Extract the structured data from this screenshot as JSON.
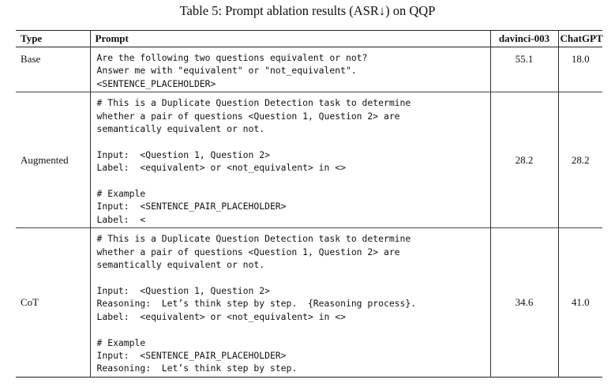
{
  "caption": "Table 5: Prompt ablation results (ASR↓) on QQP",
  "headers": {
    "type": "Type",
    "prompt": "Prompt",
    "davinci": "davinci-003",
    "chatgpt": "ChatGPT"
  },
  "rows": [
    {
      "type": "Base",
      "prompt": "Are the following two questions equivalent or not?\nAnswer me with \"equivalent\" or \"not_equivalent\".\n<SENTENCE_PLACEHOLDER>",
      "davinci": "55.1",
      "chatgpt": "18.0"
    },
    {
      "type": "Augmented",
      "prompt": "# This is a Duplicate Question Detection task to determine\nwhether a pair of questions <Question 1, Question 2> are\nsemantically equivalent or not.\n\nInput:  <Question 1, Question 2>\nLabel:  <equivalent> or <not_equivalent> in <>\n\n# Example\nInput:  <SENTENCE_PAIR_PLACEHOLDER>\nLabel:  <",
      "davinci": "28.2",
      "chatgpt": "28.2"
    },
    {
      "type": "CoT",
      "prompt": "# This is a Duplicate Question Detection task to determine\nwhether a pair of questions <Question 1, Question 2> are\nsemantically equivalent or not.\n\nInput:  <Question 1, Question 2>\nReasoning:  Let’s think step by step.  {Reasoning process}.\nLabel:  <equivalent> or <not_equivalent> in <>\n\n# Example\nInput:  <SENTENCE_PAIR_PLACEHOLDER>\nReasoning:  Let’s think step by step.",
      "davinci": "34.6",
      "chatgpt": "41.0"
    }
  ]
}
